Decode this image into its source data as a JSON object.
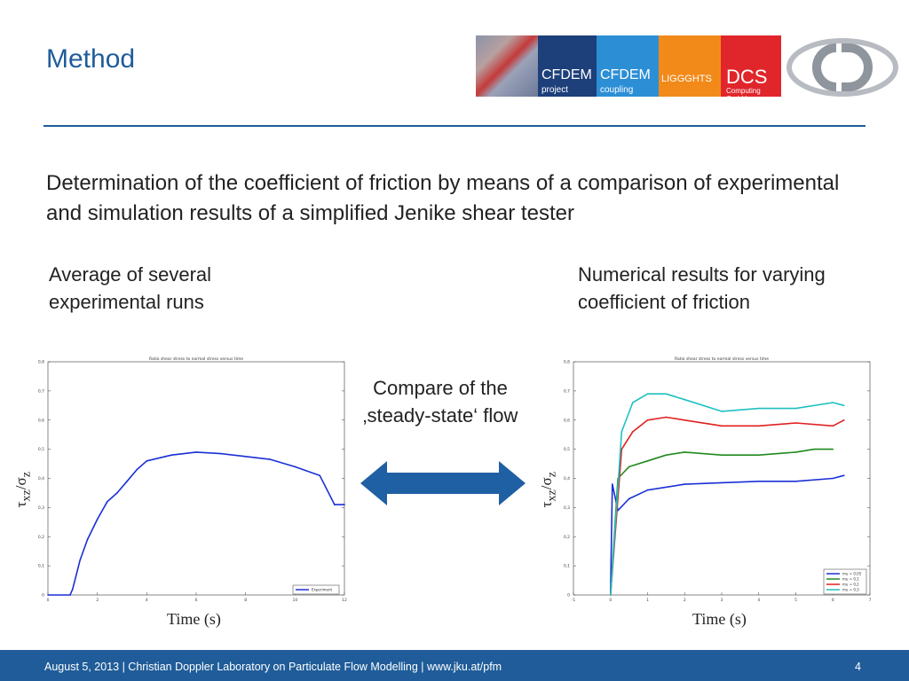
{
  "title": "Method",
  "logos": [
    {
      "main": "CFDEM",
      "sub": "project",
      "color": "#1d3f7a"
    },
    {
      "main": "CFDEM",
      "sub": "coupling",
      "color": "#2c8fd6"
    },
    {
      "main": "LIGGGHTS",
      "sub": "",
      "color": "#f28a1a"
    },
    {
      "main": "DCS",
      "sub": "Computing GmbH",
      "color": "#e0262b"
    }
  ],
  "cd_logo": "CD",
  "main_text": "Determination of the coefficient of friction by means of a comparison of experimental and simulation results of a simplified Jenike shear tester",
  "left_caption": [
    "Average of several",
    "experimental runs"
  ],
  "right_caption": [
    "Numerical results for varying",
    "coefficient of friction"
  ],
  "compare_text": [
    "Compare of the",
    "‚steady-state‘ flow"
  ],
  "arrow_icon": "double-arrow-icon",
  "ylabel": {
    "tau": "τ",
    "tau_sub": "xz",
    "slash": "/",
    "sigma": "σ",
    "sigma_sub": "z"
  },
  "xlabel": "Time (s)",
  "footer": {
    "text": "August 5, 2013 | Christian Doppler Laboratory on Particulate Flow Modelling | www.jku.at/pfm",
    "page": "4"
  },
  "colors": {
    "brand": "#1f5c99",
    "arrow": "#1f5fa3"
  },
  "chart_data": [
    {
      "type": "line",
      "title": "Ratio shear stress to normal stress versus time",
      "xlim": [
        0,
        12
      ],
      "ylim": [
        0,
        0.8
      ],
      "xticks": [
        "0",
        "2",
        "4",
        "6",
        "8",
        "10",
        "12"
      ],
      "yticks": [
        "0",
        "0,1",
        "0,2",
        "0,3",
        "0,4",
        "0,5",
        "0,6",
        "0,7",
        "0,8"
      ],
      "series": [
        {
          "name": "Experiment",
          "color": "#1a2fd6",
          "x": [
            0,
            0.9,
            1.0,
            1.3,
            1.6,
            2.0,
            2.4,
            2.8,
            3.2,
            3.6,
            4.0,
            5.0,
            6.0,
            7.0,
            8.0,
            9.0,
            10.0,
            11.0,
            11.6,
            12.0
          ],
          "y": [
            0,
            0,
            0.02,
            0.12,
            0.19,
            0.26,
            0.32,
            0.35,
            0.39,
            0.43,
            0.46,
            0.48,
            0.49,
            0.485,
            0.475,
            0.465,
            0.44,
            0.41,
            0.31,
            0.31
          ]
        }
      ]
    },
    {
      "type": "line",
      "title": "Ratio shear stress to normal stress versus time",
      "xlim": [
        -1,
        7
      ],
      "ylim": [
        0,
        0.8
      ],
      "xticks": [
        "-1",
        "0",
        "1",
        "2",
        "3",
        "4",
        "5",
        "6",
        "7"
      ],
      "yticks": [
        "0",
        "0,1",
        "0,2",
        "0,3",
        "0,4",
        "0,5",
        "0,6",
        "0,7",
        "0,8"
      ],
      "series": [
        {
          "name": "mu = 0,05",
          "color": "#1a2fd6",
          "x": [
            0,
            0.05,
            0.2,
            0.5,
            1.0,
            2.0,
            3.0,
            4.0,
            5.0,
            6.0,
            6.3
          ],
          "y": [
            0.01,
            0.38,
            0.29,
            0.33,
            0.36,
            0.38,
            0.385,
            0.39,
            0.39,
            0.4,
            0.41
          ]
        },
        {
          "name": "mu = 0,1",
          "color": "#1f8a1f",
          "x": [
            0,
            0.2,
            0.5,
            1.0,
            1.5,
            2.0,
            3.0,
            4.0,
            5.0,
            5.5,
            6.0
          ],
          "y": [
            0,
            0.4,
            0.44,
            0.46,
            0.48,
            0.49,
            0.48,
            0.48,
            0.49,
            0.5,
            0.5
          ]
        },
        {
          "name": "mu = 0,2",
          "color": "#e02020",
          "x": [
            0,
            0.3,
            0.6,
            1.0,
            1.5,
            2.0,
            3.0,
            4.0,
            5.0,
            6.0,
            6.3
          ],
          "y": [
            0,
            0.5,
            0.56,
            0.6,
            0.61,
            0.6,
            0.58,
            0.58,
            0.59,
            0.58,
            0.6
          ]
        },
        {
          "name": "mu = 0,3",
          "color": "#20c0c0",
          "x": [
            0,
            0.3,
            0.6,
            1.0,
            1.5,
            2.0,
            3.0,
            4.0,
            5.0,
            6.0,
            6.3
          ],
          "y": [
            0,
            0.56,
            0.66,
            0.69,
            0.69,
            0.67,
            0.63,
            0.64,
            0.64,
            0.66,
            0.65
          ]
        }
      ]
    }
  ]
}
